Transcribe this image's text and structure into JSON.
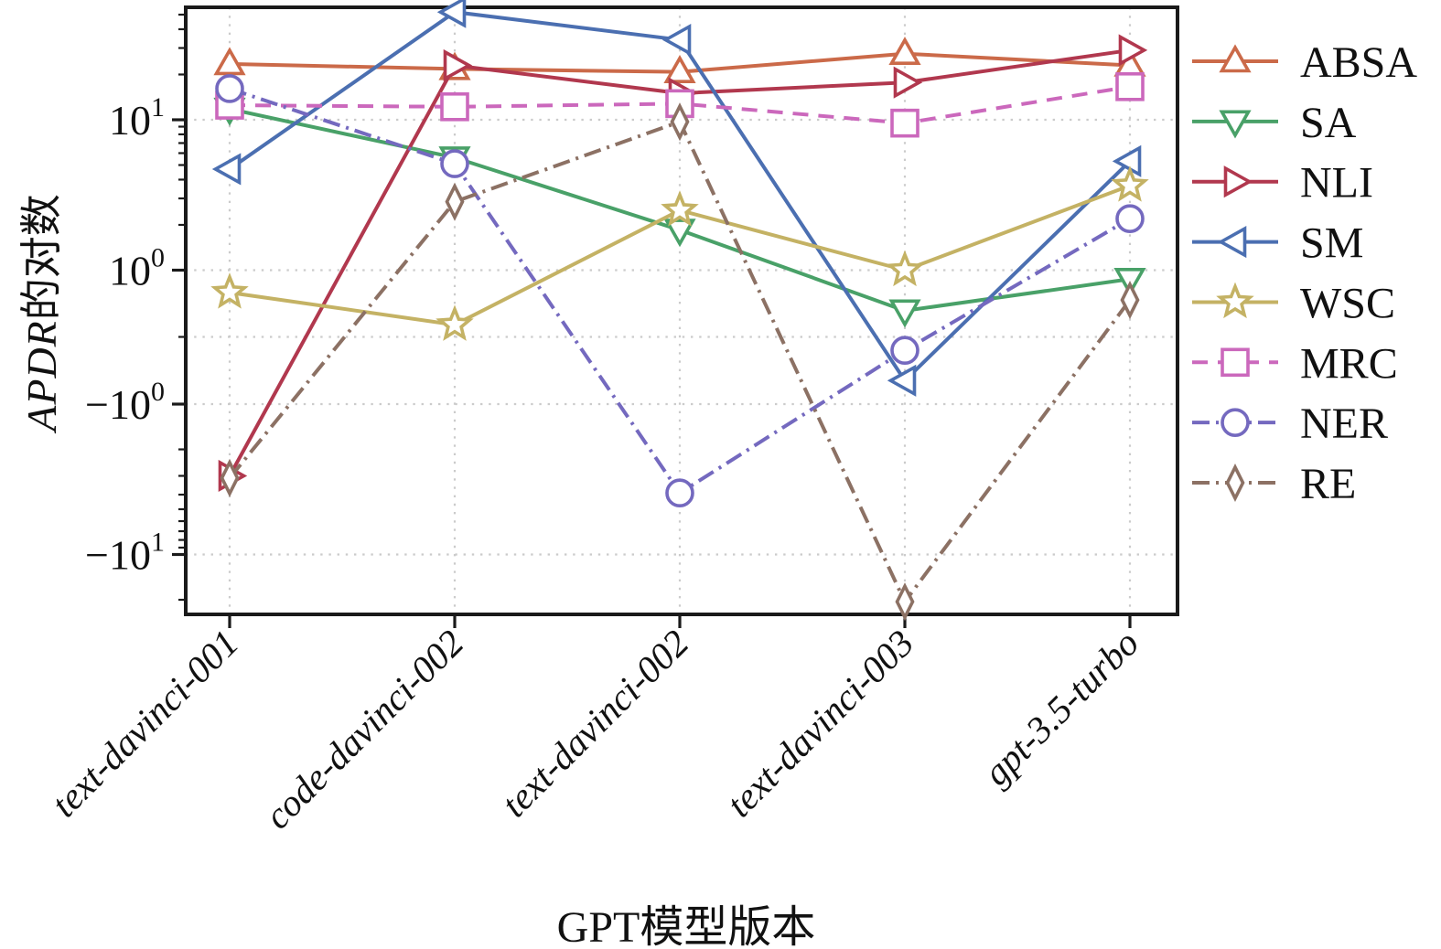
{
  "chart_data": {
    "type": "line",
    "title": "",
    "xlabel": "GPT模型版本",
    "ylabel": "APDR的对数",
    "ylabel_italic": "APDR",
    "ylabel_cjk": "的对数",
    "yscale": "symlog",
    "linthresh": 1,
    "ylim": [
      -25,
      56
    ],
    "grid": true,
    "grid_style": "dotted",
    "legend_position": "right-outside",
    "categories": [
      "text-davinci-001",
      "code-davinci-002",
      "text-davinci-002",
      "text-davinci-003",
      "gpt-3.5-turbo"
    ],
    "ytick_labels": [
      {
        "value": 10,
        "base": "10",
        "exp": "1"
      },
      {
        "value": 1,
        "base": "10",
        "exp": "0"
      },
      {
        "value": -1,
        "base": "−10",
        "exp": "0"
      },
      {
        "value": -10,
        "base": "−10",
        "exp": "1"
      }
    ],
    "series": [
      {
        "name": "ABSA",
        "color": "#cb6a49",
        "marker": "triangle-up",
        "line": "solid",
        "values": [
          23.5,
          21.8,
          20.8,
          27.5,
          23
        ]
      },
      {
        "name": "SA",
        "color": "#49a168",
        "marker": "triangle-down",
        "line": "solid",
        "values": [
          11.8,
          5.6,
          1.85,
          0.39,
          0.86
        ]
      },
      {
        "name": "NLI",
        "color": "#b1384e",
        "marker": "triangle-right",
        "line": "solid",
        "values": [
          -3.0,
          23,
          15,
          17.7,
          29
        ]
      },
      {
        "name": "SM",
        "color": "#4b6fb1",
        "marker": "triangle-left",
        "line": "solid",
        "values": [
          4.7,
          52,
          34,
          -0.65,
          5.3
        ]
      },
      {
        "name": "WSC",
        "color": "#c4b264",
        "marker": "star",
        "line": "solid",
        "values": [
          0.66,
          0.18,
          2.5,
          1.0,
          3.65
        ]
      },
      {
        "name": "MRC",
        "color": "#cb68bc",
        "marker": "square",
        "line": "dashed",
        "values": [
          12.5,
          12.2,
          12.8,
          9.5,
          16.6
        ]
      },
      {
        "name": "NER",
        "color": "#7469bf",
        "marker": "circle",
        "line": "dashdot",
        "values": [
          16.1,
          5.1,
          -3.9,
          -0.2,
          2.2
        ]
      },
      {
        "name": "RE",
        "color": "#8c7164",
        "marker": "diamond-thin",
        "line": "dashdot",
        "values": [
          -3.1,
          2.85,
          9.7,
          -20.6,
          0.55
        ]
      }
    ]
  }
}
